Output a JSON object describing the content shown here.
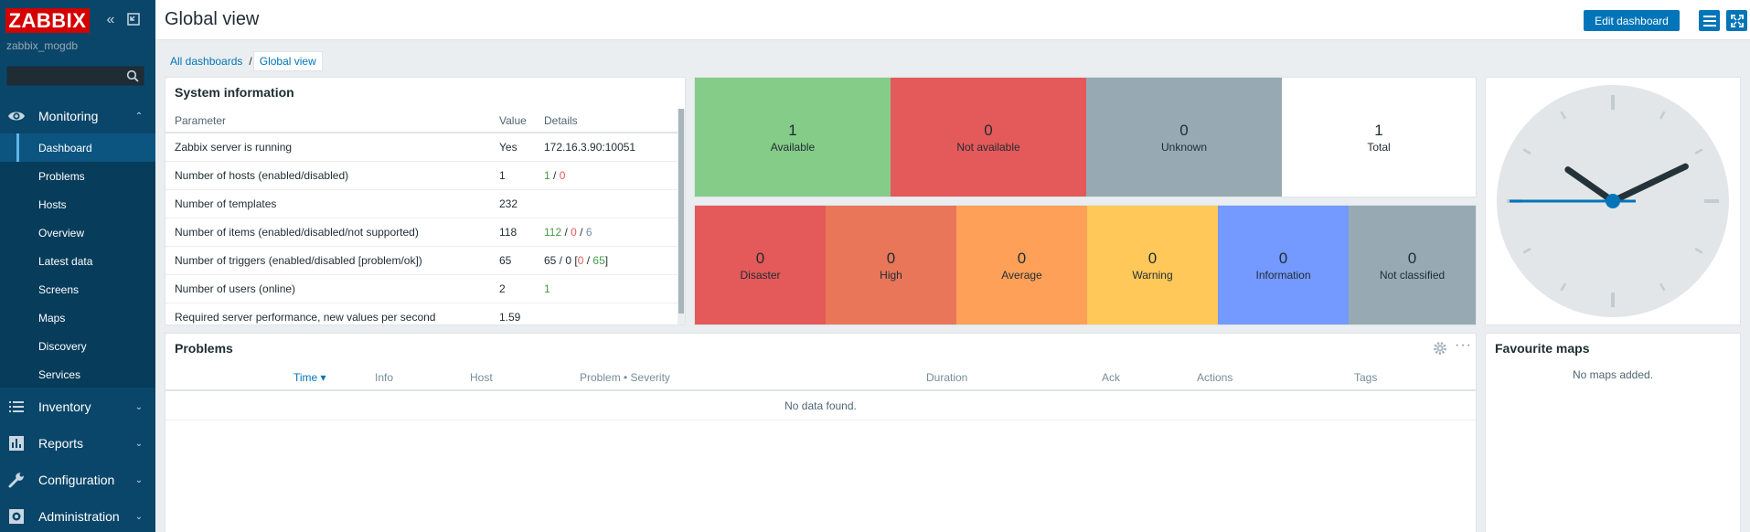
{
  "brand": {
    "logo_text": "ZABBIX",
    "server_name": "zabbix_mogdb"
  },
  "search": {
    "placeholder": "",
    "value": ""
  },
  "nav": {
    "sections": [
      {
        "label": "Monitoring",
        "icon": "eye-icon",
        "expanded": true
      },
      {
        "label": "Inventory",
        "icon": "list-icon",
        "expanded": false
      },
      {
        "label": "Reports",
        "icon": "bar-chart-icon",
        "expanded": false
      },
      {
        "label": "Configuration",
        "icon": "wrench-icon",
        "expanded": false
      },
      {
        "label": "Administration",
        "icon": "gear-icon",
        "expanded": false
      }
    ],
    "monitoring_items": [
      "Dashboard",
      "Problems",
      "Hosts",
      "Overview",
      "Latest data",
      "Screens",
      "Maps",
      "Discovery",
      "Services"
    ],
    "selected_item": "Dashboard"
  },
  "header": {
    "title": "Global view",
    "edit_label": "Edit dashboard"
  },
  "breadcrumb": {
    "all": "All dashboards",
    "separator": "/",
    "current": "Global view"
  },
  "system_info": {
    "title": "System information",
    "columns": [
      "Parameter",
      "Value",
      "Details"
    ],
    "rows": [
      {
        "parameter": "Zabbix server is running",
        "value": "Yes",
        "details": "172.16.3.90:10051"
      },
      {
        "parameter": "Number of hosts (enabled/disabled)",
        "value": "1",
        "d1": "1",
        "s1": " / ",
        "d2": "0"
      },
      {
        "parameter": "Number of templates",
        "value": "232",
        "details": ""
      },
      {
        "parameter": "Number of items (enabled/disabled/not supported)",
        "value": "118",
        "d1": "112",
        "s1": " / ",
        "d2": "0",
        "s2": " / ",
        "d3": "6"
      },
      {
        "parameter": "Number of triggers (enabled/disabled [problem/ok])",
        "value": "65",
        "pre": "65 / 0 [",
        "d1": "0",
        "s1": " / ",
        "d2": "65",
        "post": "]"
      },
      {
        "parameter": "Number of users (online)",
        "value": "2",
        "d1": "1"
      },
      {
        "parameter": "Required server performance, new values per second",
        "value": "1.59",
        "details": ""
      }
    ]
  },
  "host_availability": [
    {
      "count": "1",
      "label": "Available",
      "color": "#86cc89"
    },
    {
      "count": "0",
      "label": "Not available",
      "color": "#e45959"
    },
    {
      "count": "0",
      "label": "Unknown",
      "color": "#97aab3"
    },
    {
      "count": "1",
      "label": "Total",
      "color": "#ffffff"
    }
  ],
  "problems_by_severity": [
    {
      "count": "0",
      "label": "Disaster",
      "color": "#e45959"
    },
    {
      "count": "0",
      "label": "High",
      "color": "#e97659"
    },
    {
      "count": "0",
      "label": "Average",
      "color": "#ffa059"
    },
    {
      "count": "0",
      "label": "Warning",
      "color": "#ffc859"
    },
    {
      "count": "0",
      "label": "Information",
      "color": "#7499ff"
    },
    {
      "count": "0",
      "label": "Not classified",
      "color": "#97aab3"
    }
  ],
  "clock": {
    "hours": 10,
    "minutes": 10,
    "seconds": 45
  },
  "problems": {
    "title": "Problems",
    "columns": [
      "Time ▾",
      "Info",
      "Host",
      "Problem • Severity",
      "Duration",
      "Ack",
      "Actions",
      "Tags"
    ],
    "empty_text": "No data found."
  },
  "favourite_maps": {
    "title": "Favourite maps",
    "empty_text": "No maps added."
  },
  "colors": {
    "sidebar": "#0a466a",
    "accent": "#0275b8",
    "ok": "#429e47",
    "problem": "#e45959"
  }
}
